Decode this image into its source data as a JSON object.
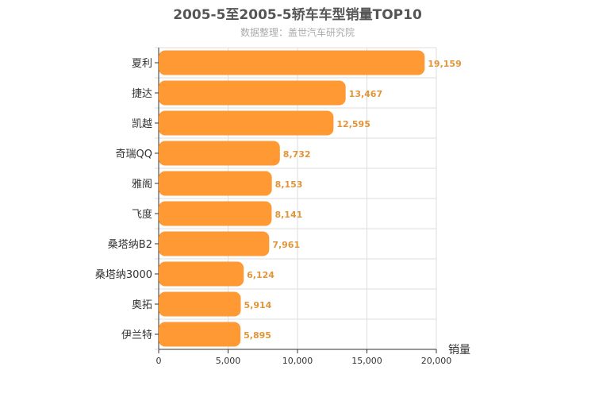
{
  "chart_data": {
    "type": "bar",
    "orientation": "horizontal",
    "title": "2005-5至2005-5轿车车型销量TOP10",
    "subtitle": "数据整理：盖世汽车研究院",
    "xlabel": "销量",
    "ylabel": "",
    "xlim": [
      0,
      20000
    ],
    "x_ticks": [
      "0",
      "5,000",
      "10,000",
      "15,000",
      "20,000"
    ],
    "grid": true,
    "bar_color": "#ff9933",
    "label_color": "#e0953a",
    "categories": [
      "夏利",
      "捷达",
      "凯越",
      "奇瑞QQ",
      "雅阁",
      "飞度",
      "桑塔纳B2",
      "桑塔纳3000",
      "奥拓",
      "伊兰特"
    ],
    "values": [
      19159,
      13467,
      12595,
      8732,
      8153,
      8141,
      7961,
      6124,
      5914,
      5895
    ],
    "value_labels": [
      "19,159",
      "13,467",
      "12,595",
      "8,732",
      "8,153",
      "8,141",
      "7,961",
      "6,124",
      "5,914",
      "5,895"
    ]
  }
}
